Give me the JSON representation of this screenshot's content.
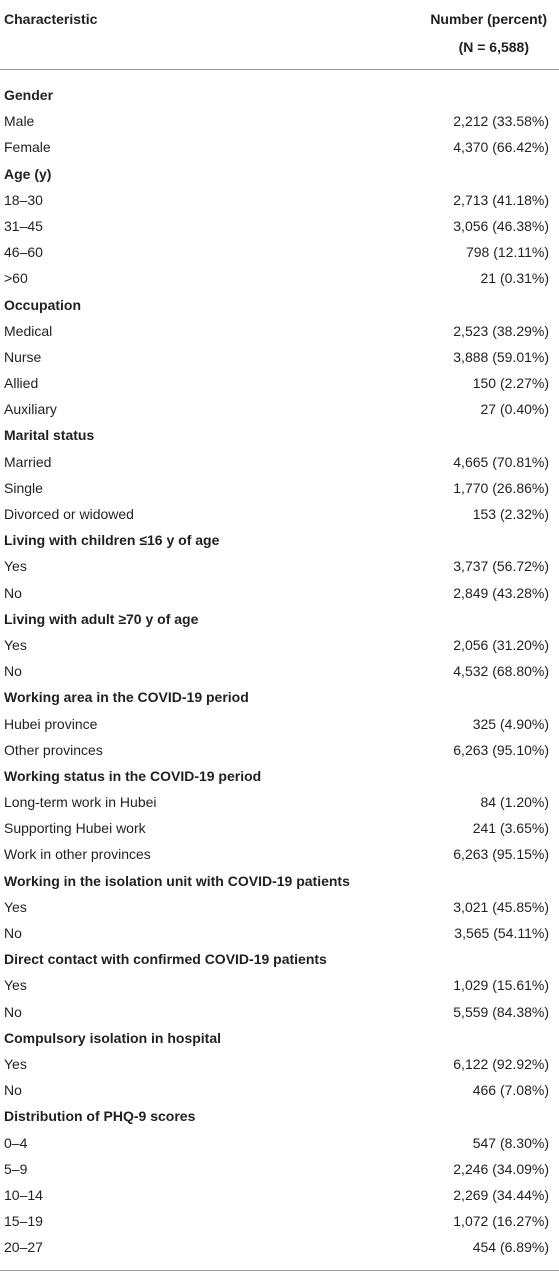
{
  "table": {
    "header": {
      "characteristic": "Characteristic",
      "number": "Number (percent)",
      "n": "(N = 6,588)"
    },
    "rows": [
      {
        "label": "Gender"
      },
      {
        "label": "Male",
        "value": "2,212 (33.58%)"
      },
      {
        "label": "Female",
        "value": "4,370 (66.42%)"
      },
      {
        "label": "Age (y)"
      },
      {
        "label": "18–30",
        "value": "2,713 (41.18%)"
      },
      {
        "label": "31–45",
        "value": "3,056 (46.38%)"
      },
      {
        "label": "46–60",
        "value": "798 (12.11%)"
      },
      {
        "label": ">60",
        "value": "21 (0.31%)"
      },
      {
        "label": "Occupation"
      },
      {
        "label": "Medical",
        "value": "2,523 (38.29%)"
      },
      {
        "label": "Nurse",
        "value": "3,888 (59.01%)"
      },
      {
        "label": "Allied",
        "value": "150 (2.27%)"
      },
      {
        "label": "Auxiliary",
        "value": "27 (0.40%)"
      },
      {
        "label": "Marital status"
      },
      {
        "label": "Married",
        "value": "4,665 (70.81%)"
      },
      {
        "label": "Single",
        "value": "1,770 (26.86%)"
      },
      {
        "label": "Divorced or widowed",
        "value": "153 (2.32%)"
      },
      {
        "label": "Living with children ≤16 y of age"
      },
      {
        "label": "Yes",
        "value": "3,737 (56.72%)"
      },
      {
        "label": "No",
        "value": "2,849 (43.28%)"
      },
      {
        "label": "Living with adult ≥70 y of age"
      },
      {
        "label": "Yes",
        "value": "2,056 (31.20%)"
      },
      {
        "label": "No",
        "value": "4,532 (68.80%)"
      },
      {
        "label": "Working area in the COVID-19 period"
      },
      {
        "label": "Hubei province",
        "value": "325 (4.90%)"
      },
      {
        "label": "Other provinces",
        "value": "6,263 (95.10%)"
      },
      {
        "label": "Working status in the COVID-19 period"
      },
      {
        "label": "Long-term work in Hubei",
        "value": "84 (1.20%)"
      },
      {
        "label": "Supporting Hubei work",
        "value": "241 (3.65%)"
      },
      {
        "label": "Work in other provinces",
        "value": "6,263 (95.15%)"
      },
      {
        "label": "Working in the isolation unit with COVID-19 patients"
      },
      {
        "label": "Yes",
        "value": "3,021 (45.85%)"
      },
      {
        "label": "No",
        "value": "3,565 (54.11%)"
      },
      {
        "label": "Direct contact with confirmed COVID-19 patients"
      },
      {
        "label": "Yes",
        "value": "1,029 (15.61%)"
      },
      {
        "label": "No",
        "value": "5,559 (84.38%)"
      },
      {
        "label": "Compulsory isolation in hospital"
      },
      {
        "label": "Yes",
        "value": "6,122 (92.92%)"
      },
      {
        "label": "No",
        "value": "466 (7.08%)"
      },
      {
        "label": "Distribution of PHQ-9 scores"
      },
      {
        "label": "0–4",
        "value": "547 (8.30%)"
      },
      {
        "label": "5–9",
        "value": "2,246 (34.09%)"
      },
      {
        "label": "10–14",
        "value": "2,269 (34.44%)"
      },
      {
        "label": "15–19",
        "value": "1,072 (16.27%)"
      },
      {
        "label": "20–27",
        "value": "454 (6.89%)"
      }
    ]
  }
}
